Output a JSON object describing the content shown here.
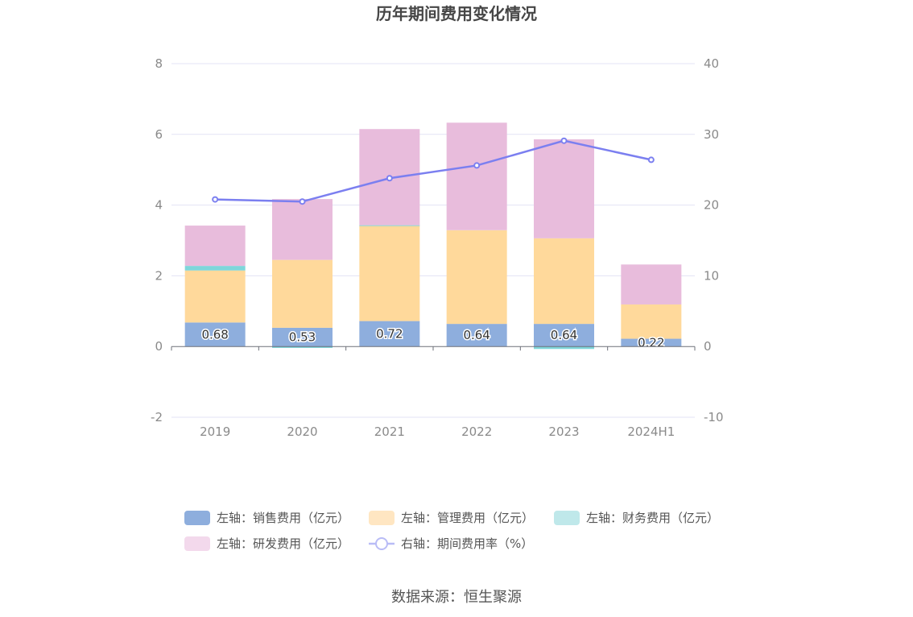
{
  "chart_data": {
    "type": "bar",
    "title": "历年期间费用变化情况",
    "categories": [
      "2019",
      "2020",
      "2021",
      "2022",
      "2023",
      "2024H1"
    ],
    "y_left": {
      "min": -2,
      "max": 8,
      "ticks": [
        "8",
        "6",
        "4",
        "2",
        "0",
        "-2"
      ]
    },
    "y_right": {
      "min": -10,
      "max": 40,
      "ticks": [
        "40",
        "30",
        "20",
        "10",
        "0",
        "-10"
      ]
    },
    "series": [
      {
        "name": "左轴：销售费用（亿元）",
        "axis": "left",
        "kind": "bar",
        "color": "#8eaedd",
        "values": [
          0.68,
          0.53,
          0.72,
          0.64,
          0.64,
          0.22
        ],
        "labels": [
          "0.68",
          "0.53",
          "0.72",
          "0.64",
          "0.64",
          "0.22"
        ]
      },
      {
        "name": "左轴：管理费用（亿元）",
        "axis": "left",
        "kind": "bar",
        "color": "#ffd99b",
        "values": [
          1.47,
          1.92,
          2.7,
          2.65,
          2.42,
          0.97
        ]
      },
      {
        "name": "左轴：财务费用（亿元）",
        "axis": "left",
        "kind": "bar",
        "color": "#7fd6da",
        "values": [
          0.13,
          -0.04,
          0.01,
          0.0,
          -0.07,
          0.0
        ]
      },
      {
        "name": "左轴：研发费用（亿元）",
        "axis": "left",
        "kind": "bar",
        "color": "#e8bcdc",
        "values": [
          1.14,
          1.72,
          2.72,
          3.04,
          2.8,
          1.13
        ]
      },
      {
        "name": "右轴：期间费用率（%）",
        "axis": "right",
        "kind": "line",
        "color": "#7b7ff0",
        "values": [
          20.8,
          20.5,
          23.8,
          25.6,
          29.1,
          26.4
        ]
      }
    ]
  },
  "source": "数据来源：恒生聚源"
}
